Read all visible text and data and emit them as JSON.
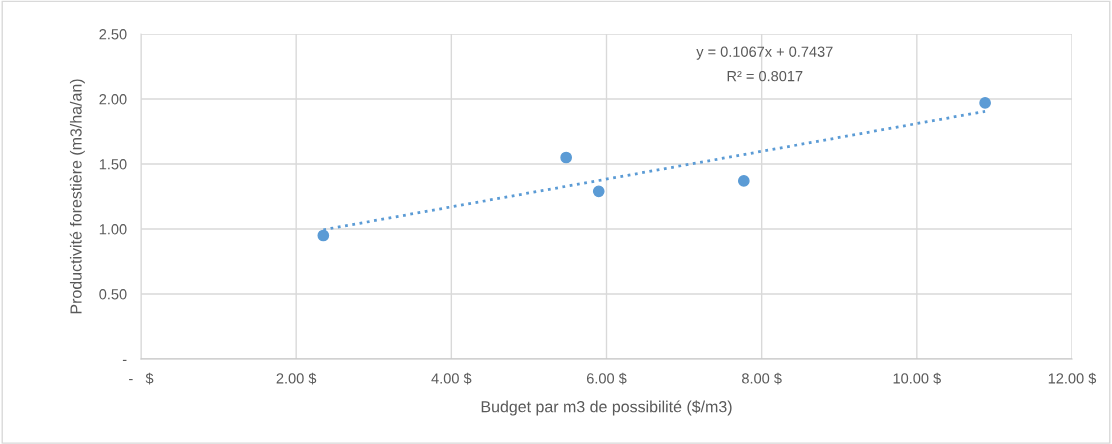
{
  "chart_data": {
    "type": "scatter",
    "xlabel": "Budget par m3 de possibilité ($/m3)",
    "ylabel": "Productivité forestière (m3/ha/an)",
    "annotations": [
      "y = 0.1067x + 0.7437",
      "R² = 0.8017"
    ],
    "series": [
      {
        "color": "#5b9bd5",
        "marker": "circle",
        "x": [
          2.35,
          5.48,
          5.9,
          7.77,
          10.88
        ],
        "values": [
          0.95,
          1.55,
          1.29,
          1.37,
          1.97
        ]
      },
      {
        "type": "line",
        "color": "#5b9bd5",
        "marker": "none",
        "line_style": "dotted",
        "x": [
          2.35,
          10.88
        ],
        "values": [
          0.994,
          1.905
        ]
      }
    ],
    "xlim": [
      0,
      12
    ],
    "ylim": [
      0,
      2.5
    ],
    "xticks": [
      {
        "value": 0,
        "label": "-   $"
      },
      {
        "value": 2,
        "label": "2.00 $"
      },
      {
        "value": 4,
        "label": "4.00 $"
      },
      {
        "value": 6,
        "label": "6.00 $"
      },
      {
        "value": 8,
        "label": "8.00 $"
      },
      {
        "value": 10,
        "label": "10.00 $"
      },
      {
        "value": 12,
        "label": "12.00 $"
      }
    ],
    "yticks": [
      {
        "value": 0,
        "label": "-"
      },
      {
        "value": 0.5,
        "label": "0.50"
      },
      {
        "value": 1,
        "label": "1.00"
      },
      {
        "value": 1.5,
        "label": "1.50"
      },
      {
        "value": 2,
        "label": "2.00"
      },
      {
        "value": 2.5,
        "label": "2.50"
      }
    ],
    "grid": true,
    "legend": false
  }
}
